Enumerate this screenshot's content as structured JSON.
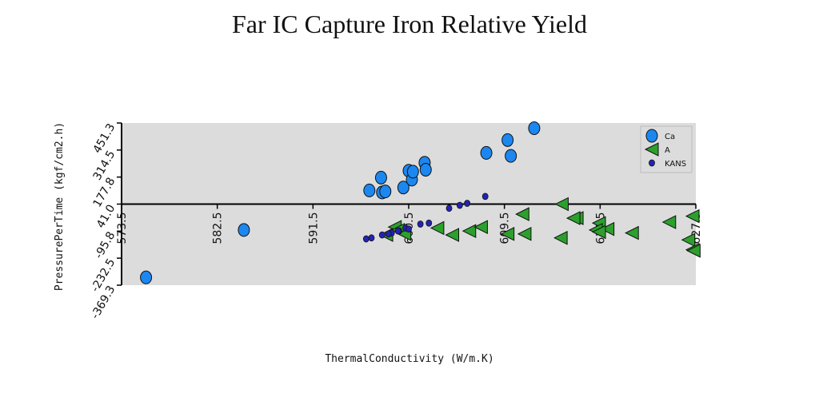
{
  "chart_data": {
    "type": "scatter",
    "title": "Far IC Capture Iron Relative Yield",
    "xlabel": "ThermalConductivity (W/m.K)",
    "ylabel": "PressurePerTime (kgf/cm2.h)",
    "xlim": [
      573.5,
      627.5
    ],
    "ylim": [
      -369.3,
      451.3
    ],
    "x_ticks": [
      "573.5",
      "582.5",
      "591.5",
      "600.5",
      "609.5",
      "618.5",
      "627.5"
    ],
    "y_ticks": [
      "-369.3",
      "-232.5",
      "-95.8",
      "41.0",
      "177.8",
      "314.5",
      "451.3"
    ],
    "grid": false,
    "legend_position": "top-right",
    "series": [
      {
        "name": "Ca",
        "color": "#1c87f0",
        "marker": "circle-large",
        "points": [
          [
            575.8,
            -330
          ],
          [
            585.0,
            -90
          ],
          [
            596.8,
            110
          ],
          [
            597.9,
            175
          ],
          [
            598.0,
            100
          ],
          [
            598.3,
            105
          ],
          [
            600.0,
            125
          ],
          [
            600.5,
            210
          ],
          [
            600.8,
            165
          ],
          [
            600.9,
            205
          ],
          [
            602.0,
            250
          ],
          [
            602.1,
            215
          ],
          [
            607.8,
            300
          ],
          [
            609.8,
            365
          ],
          [
            610.1,
            285
          ],
          [
            612.3,
            425
          ]
        ]
      },
      {
        "name": "A",
        "color": "#2ca02c",
        "marker": "triangle-left",
        "points": [
          [
            599.2,
            -75
          ],
          [
            603.2,
            -80
          ],
          [
            611.2,
            -10
          ],
          [
            618.4,
            -55
          ],
          [
            609.8,
            -110
          ],
          [
            611.4,
            -110
          ],
          [
            614.9,
            41
          ],
          [
            618.1,
            -90
          ],
          [
            625.0,
            -50
          ],
          [
            627.2,
            -20
          ],
          [
            626.8,
            -140
          ],
          [
            616.3,
            -30
          ],
          [
            614.8,
            -130
          ],
          [
            619.2,
            -85
          ],
          [
            618.4,
            -100
          ],
          [
            621.5,
            -105
          ],
          [
            606.2,
            -95
          ],
          [
            607.3,
            -75
          ],
          [
            604.6,
            -115
          ],
          [
            598.4,
            -115
          ],
          [
            599.5,
            -90
          ],
          [
            600.1,
            -110
          ],
          [
            627.2,
            -190
          ],
          [
            627.3,
            -195
          ],
          [
            616.0,
            -30
          ]
        ]
      },
      {
        "name": "KANS",
        "color": "#2323b4",
        "marker": "circle-small",
        "points": [
          [
            596.5,
            -135
          ],
          [
            597.0,
            -130
          ],
          [
            598.0,
            -115
          ],
          [
            598.9,
            -105
          ],
          [
            599.6,
            -95
          ],
          [
            600.2,
            -80
          ],
          [
            601.6,
            -60
          ],
          [
            602.4,
            -55
          ],
          [
            604.3,
            20
          ],
          [
            605.3,
            35
          ],
          [
            606.0,
            45
          ],
          [
            607.7,
            80
          ],
          [
            598.6,
            -110
          ],
          [
            599.5,
            -95
          ],
          [
            600.5,
            -85
          ]
        ]
      }
    ]
  }
}
